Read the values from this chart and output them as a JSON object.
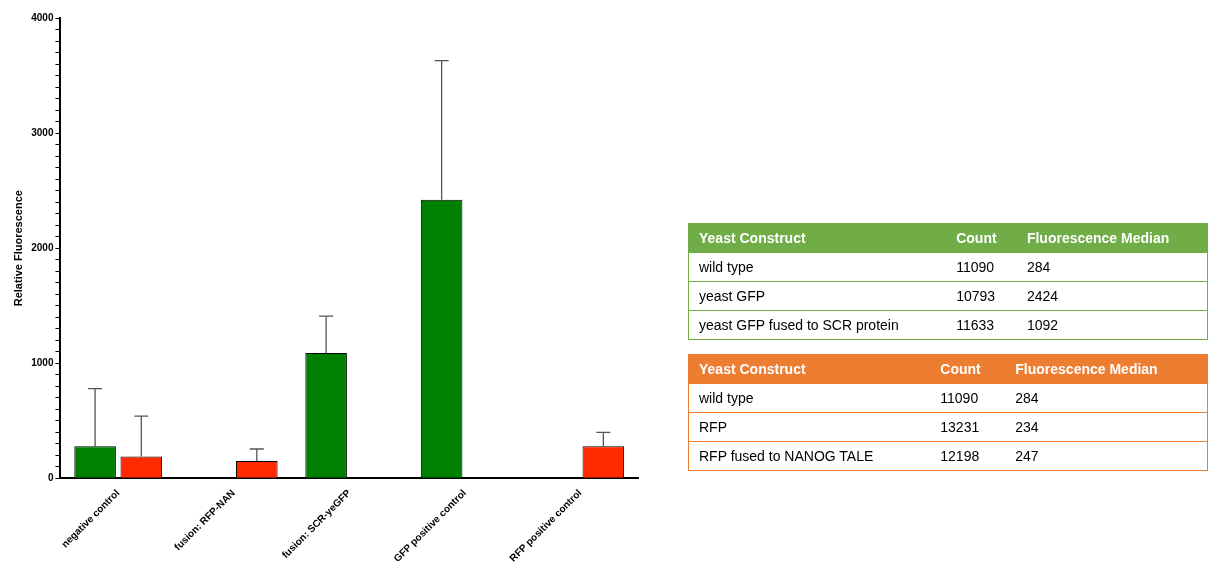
{
  "chart_data": [
    {
      "type": "bar",
      "ylabel": "Relative Fluorescence",
      "categories": [
        "negative control",
        "fusion: RFP-NAN",
        "fusion: SCR-yeGFP",
        "GFP positive control",
        "RFP positive control"
      ],
      "series": [
        {
          "color": "#008000",
          "values": [
            280,
            null,
            1090,
            2420,
            null
          ],
          "errors": [
            [
              280,
              780
            ],
            null,
            [
              1090,
              1410
            ],
            [
              2420,
              3630
            ],
            null
          ]
        },
        {
          "color": "#ff2a00",
          "values": [
            190,
            150,
            null,
            null,
            280
          ],
          "errors": [
            [
              190,
              540
            ],
            [
              150,
              255
            ],
            null,
            null,
            [
              280,
              400
            ]
          ]
        }
      ],
      "ylim": [
        0,
        4000
      ],
      "yticks": [
        0,
        {
          "value": 100,
          "label": null
        },
        {
          "value": 200,
          "label": null
        },
        {
          "value": 300,
          "label": null
        },
        {
          "value": 400,
          "label": null
        },
        {
          "value": 500,
          "label": null
        },
        {
          "value": 600,
          "label": null
        },
        {
          "value": 700,
          "label": null
        },
        {
          "value": 800,
          "label": null
        },
        {
          "value": 900,
          "label": null
        },
        1000,
        {
          "value": 1100,
          "label": null
        },
        {
          "value": 1200,
          "label": null
        },
        {
          "value": 1300,
          "label": null
        },
        {
          "value": 1400,
          "label": null
        },
        {
          "value": 1500,
          "label": null
        },
        {
          "value": 1600,
          "label": null
        },
        {
          "value": 1700,
          "label": null
        },
        {
          "value": 1800,
          "label": null
        },
        {
          "value": 1900,
          "label": null
        },
        2000,
        {
          "value": 2100,
          "label": null
        },
        {
          "value": 2200,
          "label": null
        },
        {
          "value": 2300,
          "label": null
        },
        {
          "value": 2400,
          "label": null
        },
        {
          "value": 2500,
          "label": null
        },
        {
          "value": 2600,
          "label": null
        },
        {
          "value": 2700,
          "label": null
        },
        {
          "value": 2800,
          "label": null
        },
        {
          "value": 2900,
          "label": null
        },
        3000,
        {
          "value": 3100,
          "label": null
        },
        {
          "value": 3200,
          "label": null
        },
        {
          "value": 3300,
          "label": null
        },
        {
          "value": 3400,
          "label": null
        },
        {
          "value": 3500,
          "label": null
        },
        {
          "value": 3600,
          "label": null
        },
        {
          "value": 3700,
          "label": null
        },
        {
          "value": 3800,
          "label": null
        },
        {
          "value": 3900,
          "label": null
        },
        4000
      ]
    },
    {
      "type": "other",
      "xlabel": "Yeast Construct",
      "categories": [
        "wild type",
        "yeast GFP",
        "yeast GFP fused to SCR protein"
      ],
      "data_labels": true,
      "series": [
        {
          "name": "Count",
          "values": [
            11090,
            10793,
            11633
          ]
        },
        {
          "name": "Fluorescence Median",
          "values": [
            284,
            2424,
            1092
          ]
        }
      ]
    },
    {
      "type": "other",
      "xlabel": "Yeast Construct",
      "categories": [
        "wild type",
        "RFP",
        "RFP fused to NANOG TALE"
      ],
      "data_labels": true,
      "series": [
        {
          "name": "Count",
          "values": [
            11090,
            13231,
            12198
          ]
        },
        {
          "name": "Fluorescence Median",
          "values": [
            284,
            234,
            247
          ]
        }
      ]
    }
  ]
}
